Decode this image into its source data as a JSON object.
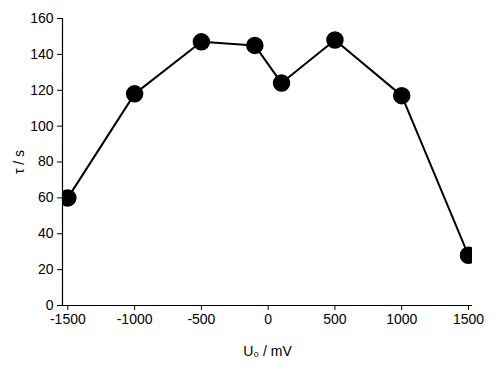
{
  "chart_data": {
    "type": "line",
    "x_label": "U₀ / mV",
    "y_label": "τ / s",
    "x": [
      -1500,
      -1000,
      -500,
      -100,
      100,
      500,
      1000,
      1500
    ],
    "values": [
      60,
      118,
      147,
      145,
      124,
      148,
      117,
      28
    ],
    "color": "#000000",
    "marker": "circle",
    "line_style": "solid",
    "xlim": [
      -1540,
      1530
    ],
    "xticks": [
      -1500,
      -1000,
      -500,
      0,
      500,
      1000,
      1500
    ],
    "ylim": [
      0,
      160
    ],
    "yticks": [
      0,
      20,
      40,
      60,
      80,
      100,
      120,
      140,
      160
    ],
    "grid": false
  }
}
